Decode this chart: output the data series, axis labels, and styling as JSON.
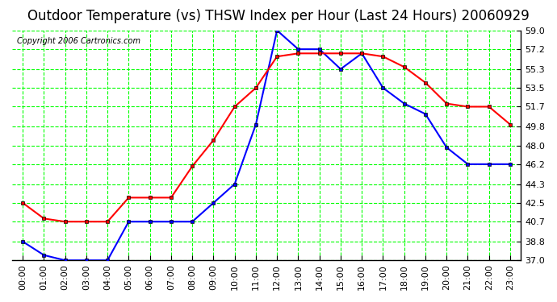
{
  "title": "Outdoor Temperature (vs) THSW Index per Hour (Last 24 Hours) 20060929",
  "copyright": "Copyright 2006 Cartronics.com",
  "hours": [
    "00:00",
    "01:00",
    "02:00",
    "03:00",
    "04:00",
    "05:00",
    "06:00",
    "07:00",
    "08:00",
    "09:00",
    "10:00",
    "11:00",
    "12:00",
    "13:00",
    "14:00",
    "15:00",
    "16:00",
    "17:00",
    "18:00",
    "19:00",
    "20:00",
    "21:00",
    "22:00",
    "23:00"
  ],
  "temp_red": [
    42.5,
    41.0,
    40.7,
    40.7,
    40.7,
    43.0,
    43.0,
    43.0,
    46.0,
    48.5,
    51.7,
    53.5,
    56.5,
    56.8,
    56.8,
    56.8,
    56.8,
    56.5,
    55.5,
    54.0,
    52.0,
    51.7,
    51.7,
    50.0
  ],
  "thsw_blue": [
    38.8,
    37.5,
    37.0,
    37.0,
    37.0,
    40.7,
    40.7,
    40.7,
    40.7,
    42.5,
    44.3,
    50.0,
    59.0,
    57.2,
    57.2,
    55.3,
    56.8,
    53.5,
    52.0,
    51.0,
    47.8,
    46.2,
    46.2,
    46.2
  ],
  "ylim_min": 37.0,
  "ylim_max": 59.0,
  "yticks": [
    37.0,
    38.8,
    40.7,
    42.5,
    44.3,
    46.2,
    48.0,
    49.8,
    51.7,
    53.5,
    55.3,
    57.2,
    59.0
  ],
  "background_color": "#ffffff",
  "plot_bg_color": "#ffffff",
  "grid_color": "#00ff00",
  "red_color": "#ff0000",
  "blue_color": "#0000ff",
  "title_fontsize": 12,
  "copyright_fontsize": 7,
  "tick_fontsize": 8
}
